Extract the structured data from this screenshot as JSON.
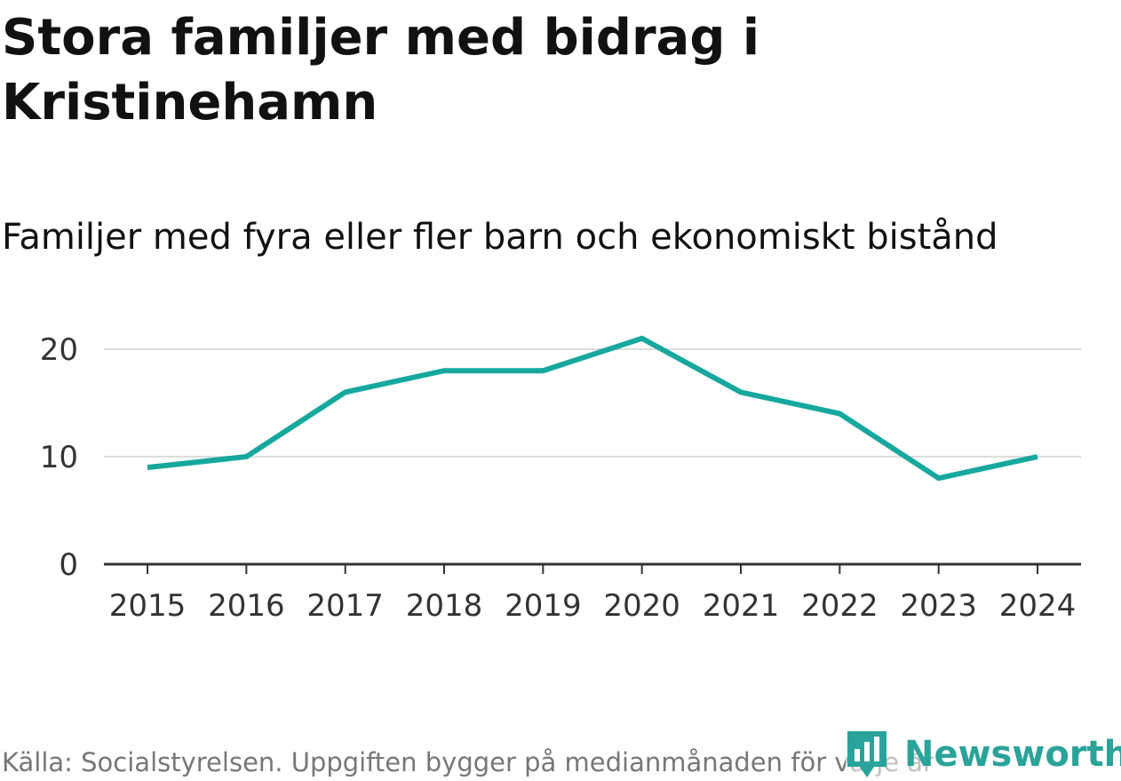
{
  "header": {
    "title": "Stora familjer med bidrag i Kristinehamn",
    "subtitle": "Familjer med fyra eller fler barn och ekonomiskt bistånd"
  },
  "footer": {
    "source": "Källa: Socialstyrelsen. Uppgiften bygger på medianmånaden för varje år"
  },
  "brand": {
    "name": "Newsworthy",
    "icon": "newsworthy-logo-icon",
    "color": "#2aa39a"
  },
  "colors": {
    "line": "#16a89e",
    "grid": "#dddddd",
    "axis": "#333333"
  },
  "chart_data": {
    "type": "line",
    "title": "Stora familjer med bidrag i Kristinehamn",
    "subtitle": "Familjer med fyra eller fler barn och ekonomiskt bistånd",
    "xlabel": "",
    "ylabel": "",
    "categories": [
      "2015",
      "2016",
      "2017",
      "2018",
      "2019",
      "2020",
      "2021",
      "2022",
      "2023",
      "2024"
    ],
    "series": [
      {
        "values": [
          9,
          10,
          16,
          18,
          18,
          21,
          16,
          14,
          8,
          10
        ]
      }
    ],
    "yticks": [
      0,
      10,
      20
    ],
    "ytick_labels": [
      "0",
      "10",
      "20"
    ],
    "ylim": [
      0,
      22
    ],
    "grid": true,
    "legend": "none"
  }
}
